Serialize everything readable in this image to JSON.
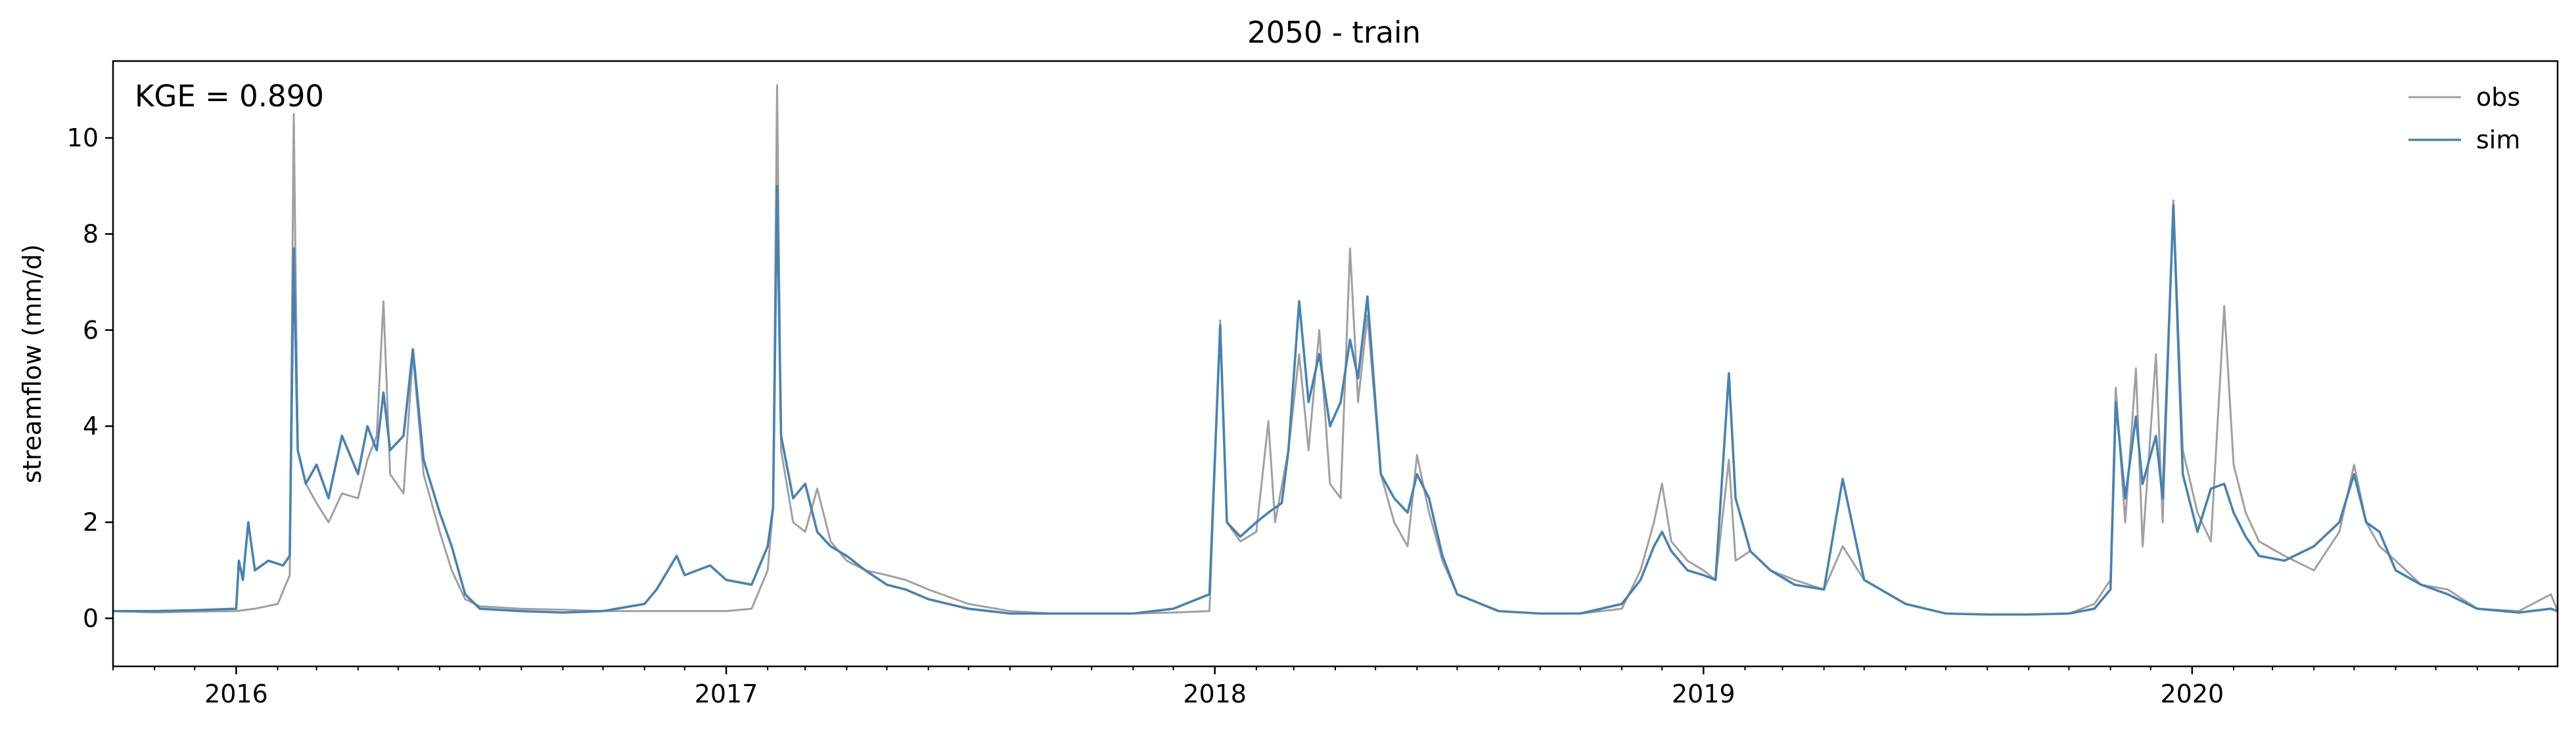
{
  "chart_data": {
    "type": "line",
    "title": "2050 - train",
    "xlabel": "",
    "ylabel": "streamflow (mm/d)",
    "xlim": [
      "2015-10-01",
      "2020-09-30"
    ],
    "ylim": [
      -1,
      11.6
    ],
    "x_tick_labels": [
      "2016",
      "2017",
      "2018",
      "2019",
      "2020"
    ],
    "y_tick_values": [
      0,
      2,
      4,
      6,
      8,
      10
    ],
    "grid": false,
    "legend_position": "top-right",
    "annotation": "KGE = 0.890",
    "series": [
      {
        "name": "obs",
        "color": "#a0a0a0",
        "points": [
          [
            "2015-10-01",
            0.15
          ],
          [
            "2015-11-01",
            0.12
          ],
          [
            "2015-12-01",
            0.14
          ],
          [
            "2016-01-01",
            0.15
          ],
          [
            "2016-01-15",
            0.2
          ],
          [
            "2016-02-01",
            0.3
          ],
          [
            "2016-02-10",
            0.9
          ],
          [
            "2016-02-13",
            10.5
          ],
          [
            "2016-02-16",
            3.5
          ],
          [
            "2016-02-22",
            2.8
          ],
          [
            "2016-03-01",
            2.4
          ],
          [
            "2016-03-10",
            2.0
          ],
          [
            "2016-03-20",
            2.6
          ],
          [
            "2016-04-01",
            2.5
          ],
          [
            "2016-04-08",
            3.3
          ],
          [
            "2016-04-15",
            3.8
          ],
          [
            "2016-04-20",
            6.6
          ],
          [
            "2016-04-25",
            3.0
          ],
          [
            "2016-05-05",
            2.6
          ],
          [
            "2016-05-12",
            5.5
          ],
          [
            "2016-05-20",
            3.0
          ],
          [
            "2016-06-01",
            1.8
          ],
          [
            "2016-06-10",
            1.0
          ],
          [
            "2016-06-20",
            0.4
          ],
          [
            "2016-07-01",
            0.25
          ],
          [
            "2016-08-01",
            0.2
          ],
          [
            "2016-09-01",
            0.18
          ],
          [
            "2016-10-01",
            0.15
          ],
          [
            "2016-11-01",
            0.15
          ],
          [
            "2016-12-01",
            0.15
          ],
          [
            "2017-01-01",
            0.15
          ],
          [
            "2017-01-20",
            0.2
          ],
          [
            "2017-02-01",
            1.0
          ],
          [
            "2017-02-05",
            2.3
          ],
          [
            "2017-02-08",
            11.1
          ],
          [
            "2017-02-11",
            3.5
          ],
          [
            "2017-02-20",
            2.0
          ],
          [
            "2017-03-01",
            1.8
          ],
          [
            "2017-03-10",
            2.7
          ],
          [
            "2017-03-20",
            1.6
          ],
          [
            "2017-04-01",
            1.2
          ],
          [
            "2017-04-15",
            1.0
          ],
          [
            "2017-05-01",
            0.9
          ],
          [
            "2017-05-15",
            0.8
          ],
          [
            "2017-06-01",
            0.6
          ],
          [
            "2017-07-01",
            0.3
          ],
          [
            "2017-08-01",
            0.15
          ],
          [
            "2017-09-01",
            0.1
          ],
          [
            "2017-10-01",
            0.1
          ],
          [
            "2017-11-01",
            0.1
          ],
          [
            "2017-12-01",
            0.12
          ],
          [
            "2017-12-28",
            0.15
          ],
          [
            "2018-01-05",
            6.2
          ],
          [
            "2018-01-10",
            2.0
          ],
          [
            "2018-01-20",
            1.6
          ],
          [
            "2018-02-01",
            1.8
          ],
          [
            "2018-02-10",
            4.1
          ],
          [
            "2018-02-15",
            2.0
          ],
          [
            "2018-02-25",
            3.5
          ],
          [
            "2018-03-05",
            5.5
          ],
          [
            "2018-03-12",
            3.5
          ],
          [
            "2018-03-20",
            6.0
          ],
          [
            "2018-03-28",
            2.8
          ],
          [
            "2018-04-05",
            2.5
          ],
          [
            "2018-04-12",
            7.7
          ],
          [
            "2018-04-18",
            4.5
          ],
          [
            "2018-04-25",
            6.3
          ],
          [
            "2018-05-05",
            3.0
          ],
          [
            "2018-05-15",
            2.0
          ],
          [
            "2018-05-25",
            1.5
          ],
          [
            "2018-06-01",
            3.4
          ],
          [
            "2018-06-10",
            2.2
          ],
          [
            "2018-06-20",
            1.2
          ],
          [
            "2018-07-01",
            0.5
          ],
          [
            "2018-08-01",
            0.15
          ],
          [
            "2018-09-01",
            0.1
          ],
          [
            "2018-10-01",
            0.1
          ],
          [
            "2018-11-01",
            0.2
          ],
          [
            "2018-11-15",
            1.0
          ],
          [
            "2018-11-25",
            2.0
          ],
          [
            "2018-12-01",
            2.8
          ],
          [
            "2018-12-08",
            1.6
          ],
          [
            "2018-12-20",
            1.2
          ],
          [
            "2019-01-01",
            1.0
          ],
          [
            "2019-01-10",
            0.8
          ],
          [
            "2019-01-20",
            3.3
          ],
          [
            "2019-01-25",
            1.2
          ],
          [
            "2019-02-05",
            1.4
          ],
          [
            "2019-02-20",
            1.0
          ],
          [
            "2019-03-10",
            0.8
          ],
          [
            "2019-04-01",
            0.6
          ],
          [
            "2019-04-15",
            1.5
          ],
          [
            "2019-05-01",
            0.8
          ],
          [
            "2019-06-01",
            0.3
          ],
          [
            "2019-07-01",
            0.1
          ],
          [
            "2019-08-01",
            0.08
          ],
          [
            "2019-09-01",
            0.08
          ],
          [
            "2019-10-01",
            0.1
          ],
          [
            "2019-10-20",
            0.3
          ],
          [
            "2019-11-01",
            0.8
          ],
          [
            "2019-11-05",
            4.8
          ],
          [
            "2019-11-12",
            2.0
          ],
          [
            "2019-11-20",
            5.2
          ],
          [
            "2019-11-25",
            1.5
          ],
          [
            "2019-12-05",
            5.5
          ],
          [
            "2019-12-10",
            2.0
          ],
          [
            "2019-12-18",
            8.7
          ],
          [
            "2019-12-25",
            3.5
          ],
          [
            "2020-01-05",
            2.2
          ],
          [
            "2020-01-15",
            1.6
          ],
          [
            "2020-01-25",
            6.5
          ],
          [
            "2020-02-01",
            3.2
          ],
          [
            "2020-02-10",
            2.2
          ],
          [
            "2020-02-20",
            1.6
          ],
          [
            "2020-03-10",
            1.3
          ],
          [
            "2020-04-01",
            1.0
          ],
          [
            "2020-04-20",
            1.8
          ],
          [
            "2020-05-01",
            3.2
          ],
          [
            "2020-05-10",
            2.0
          ],
          [
            "2020-05-20",
            1.5
          ],
          [
            "2020-06-01",
            1.2
          ],
          [
            "2020-06-20",
            0.7
          ],
          [
            "2020-07-10",
            0.6
          ],
          [
            "2020-08-01",
            0.2
          ],
          [
            "2020-09-01",
            0.15
          ],
          [
            "2020-09-25",
            0.5
          ],
          [
            "2020-09-30",
            0.15
          ]
        ]
      },
      {
        "name": "sim",
        "color": "#4682b4",
        "points": [
          [
            "2015-10-01",
            0.15
          ],
          [
            "2015-11-01",
            0.15
          ],
          [
            "2015-12-01",
            0.17
          ],
          [
            "2016-01-01",
            0.2
          ],
          [
            "2016-01-03",
            1.2
          ],
          [
            "2016-01-06",
            0.8
          ],
          [
            "2016-01-10",
            2.0
          ],
          [
            "2016-01-15",
            1.0
          ],
          [
            "2016-01-25",
            1.2
          ],
          [
            "2016-02-05",
            1.1
          ],
          [
            "2016-02-10",
            1.3
          ],
          [
            "2016-02-13",
            7.7
          ],
          [
            "2016-02-16",
            3.5
          ],
          [
            "2016-02-22",
            2.8
          ],
          [
            "2016-03-01",
            3.2
          ],
          [
            "2016-03-10",
            2.5
          ],
          [
            "2016-03-20",
            3.8
          ],
          [
            "2016-04-01",
            3.0
          ],
          [
            "2016-04-08",
            4.0
          ],
          [
            "2016-04-15",
            3.5
          ],
          [
            "2016-04-20",
            4.7
          ],
          [
            "2016-04-25",
            3.5
          ],
          [
            "2016-05-05",
            3.8
          ],
          [
            "2016-05-12",
            5.6
          ],
          [
            "2016-05-20",
            3.3
          ],
          [
            "2016-06-01",
            2.2
          ],
          [
            "2016-06-10",
            1.5
          ],
          [
            "2016-06-20",
            0.5
          ],
          [
            "2016-07-01",
            0.2
          ],
          [
            "2016-08-01",
            0.15
          ],
          [
            "2016-09-01",
            0.12
          ],
          [
            "2016-10-01",
            0.15
          ],
          [
            "2016-11-01",
            0.3
          ],
          [
            "2016-11-10",
            0.6
          ],
          [
            "2016-11-25",
            1.3
          ],
          [
            "2016-12-01",
            0.9
          ],
          [
            "2016-12-20",
            1.1
          ],
          [
            "2017-01-01",
            0.8
          ],
          [
            "2017-01-20",
            0.7
          ],
          [
            "2017-02-01",
            1.5
          ],
          [
            "2017-02-05",
            2.3
          ],
          [
            "2017-02-08",
            9.0
          ],
          [
            "2017-02-11",
            3.8
          ],
          [
            "2017-02-20",
            2.5
          ],
          [
            "2017-03-01",
            2.8
          ],
          [
            "2017-03-10",
            1.8
          ],
          [
            "2017-03-20",
            1.5
          ],
          [
            "2017-04-01",
            1.3
          ],
          [
            "2017-04-15",
            1.0
          ],
          [
            "2017-05-01",
            0.7
          ],
          [
            "2017-05-15",
            0.6
          ],
          [
            "2017-06-01",
            0.4
          ],
          [
            "2017-07-01",
            0.2
          ],
          [
            "2017-08-01",
            0.1
          ],
          [
            "2017-09-01",
            0.1
          ],
          [
            "2017-10-01",
            0.1
          ],
          [
            "2017-11-01",
            0.1
          ],
          [
            "2017-12-01",
            0.2
          ],
          [
            "2017-12-28",
            0.5
          ],
          [
            "2018-01-05",
            6.1
          ],
          [
            "2018-01-10",
            2.0
          ],
          [
            "2018-01-20",
            1.7
          ],
          [
            "2018-02-01",
            2.0
          ],
          [
            "2018-02-10",
            2.2
          ],
          [
            "2018-02-20",
            2.4
          ],
          [
            "2018-02-25",
            3.5
          ],
          [
            "2018-03-05",
            6.6
          ],
          [
            "2018-03-12",
            4.5
          ],
          [
            "2018-03-20",
            5.5
          ],
          [
            "2018-03-28",
            4.0
          ],
          [
            "2018-04-05",
            4.5
          ],
          [
            "2018-04-12",
            5.8
          ],
          [
            "2018-04-18",
            5.0
          ],
          [
            "2018-04-25",
            6.7
          ],
          [
            "2018-05-05",
            3.0
          ],
          [
            "2018-05-15",
            2.5
          ],
          [
            "2018-05-25",
            2.2
          ],
          [
            "2018-06-01",
            3.0
          ],
          [
            "2018-06-10",
            2.5
          ],
          [
            "2018-06-20",
            1.3
          ],
          [
            "2018-07-01",
            0.5
          ],
          [
            "2018-08-01",
            0.15
          ],
          [
            "2018-09-01",
            0.1
          ],
          [
            "2018-10-01",
            0.1
          ],
          [
            "2018-11-01",
            0.3
          ],
          [
            "2018-11-15",
            0.8
          ],
          [
            "2018-11-25",
            1.5
          ],
          [
            "2018-12-01",
            1.8
          ],
          [
            "2018-12-08",
            1.4
          ],
          [
            "2018-12-20",
            1.0
          ],
          [
            "2019-01-01",
            0.9
          ],
          [
            "2019-01-10",
            0.8
          ],
          [
            "2019-01-20",
            5.1
          ],
          [
            "2019-01-25",
            2.5
          ],
          [
            "2019-02-05",
            1.4
          ],
          [
            "2019-02-20",
            1.0
          ],
          [
            "2019-03-10",
            0.7
          ],
          [
            "2019-04-01",
            0.6
          ],
          [
            "2019-04-15",
            2.9
          ],
          [
            "2019-05-01",
            0.8
          ],
          [
            "2019-06-01",
            0.3
          ],
          [
            "2019-07-01",
            0.1
          ],
          [
            "2019-08-01",
            0.08
          ],
          [
            "2019-09-01",
            0.08
          ],
          [
            "2019-10-01",
            0.1
          ],
          [
            "2019-10-20",
            0.2
          ],
          [
            "2019-11-01",
            0.6
          ],
          [
            "2019-11-05",
            4.5
          ],
          [
            "2019-11-12",
            2.5
          ],
          [
            "2019-11-20",
            4.2
          ],
          [
            "2019-11-25",
            2.8
          ],
          [
            "2019-12-05",
            3.8
          ],
          [
            "2019-12-10",
            2.5
          ],
          [
            "2019-12-18",
            8.6
          ],
          [
            "2019-12-25",
            3.0
          ],
          [
            "2020-01-05",
            1.8
          ],
          [
            "2020-01-15",
            2.7
          ],
          [
            "2020-01-25",
            2.8
          ],
          [
            "2020-02-01",
            2.2
          ],
          [
            "2020-02-10",
            1.7
          ],
          [
            "2020-02-20",
            1.3
          ],
          [
            "2020-03-10",
            1.2
          ],
          [
            "2020-04-01",
            1.5
          ],
          [
            "2020-04-20",
            2.0
          ],
          [
            "2020-05-01",
            3.0
          ],
          [
            "2020-05-10",
            2.0
          ],
          [
            "2020-05-20",
            1.8
          ],
          [
            "2020-06-01",
            1.0
          ],
          [
            "2020-06-20",
            0.7
          ],
          [
            "2020-07-10",
            0.5
          ],
          [
            "2020-08-01",
            0.2
          ],
          [
            "2020-09-01",
            0.12
          ],
          [
            "2020-09-25",
            0.2
          ],
          [
            "2020-09-30",
            0.15
          ]
        ]
      }
    ]
  }
}
